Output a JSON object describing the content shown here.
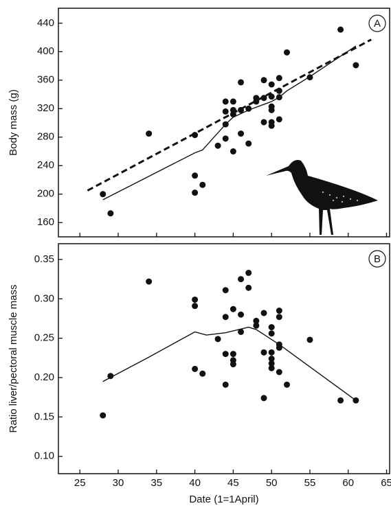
{
  "chart_data": [
    {
      "type": "scatter",
      "ylabel": "Body mass (g)",
      "annotation": "A",
      "color": "#111",
      "xlim": [
        22.2,
        65.4
      ],
      "ylim": [
        140,
        461
      ],
      "xticks": [
        25,
        30,
        35,
        40,
        45,
        50,
        55,
        60,
        65
      ],
      "xtick_labels": false,
      "yticks": [
        160,
        200,
        240,
        280,
        320,
        360,
        400,
        440
      ],
      "points": {
        "x": [
          28,
          29,
          34,
          40,
          40,
          40,
          41,
          43,
          44,
          44,
          44,
          44,
          45,
          45,
          45,
          45,
          46,
          46,
          46,
          47,
          47,
          48,
          48,
          49,
          49,
          49,
          50,
          50,
          50,
          50,
          50,
          50,
          51,
          51,
          51,
          51,
          52,
          55,
          59,
          61
        ],
        "y": [
          200,
          173,
          285,
          283,
          226,
          202,
          213,
          268,
          330,
          316,
          298,
          278,
          330,
          318,
          312,
          260,
          357,
          318,
          285,
          271,
          320,
          335,
          330,
          360,
          335,
          301,
          354,
          337,
          323,
          318,
          301,
          296,
          363,
          345,
          336,
          305,
          399,
          364,
          431,
          381
        ]
      },
      "lines": [
        {
          "style": "solid",
          "x": [
            28,
            40,
            41,
            44,
            45,
            47,
            49,
            50,
            51,
            52,
            55,
            61
          ],
          "y": [
            192,
            258,
            262,
            298,
            308,
            318,
            326,
            330,
            336,
            345,
            365,
            408
          ]
        },
        {
          "style": "dashed",
          "x": [
            26,
            63
          ],
          "y": [
            205,
            417
          ]
        }
      ]
    },
    {
      "type": "scatter",
      "ylabel": "Ratio liver/pectoral muscle mass",
      "annotation": "B",
      "xlabel": "Date (1=1April)",
      "color": "#111",
      "xlim": [
        22.2,
        65.4
      ],
      "ylim": [
        0.078,
        0.37
      ],
      "xticks": [
        25,
        30,
        35,
        40,
        45,
        50,
        55,
        60,
        65
      ],
      "xtick_labels": true,
      "yticks": [
        {
          "value": 0.1,
          "label": "0.10"
        },
        0.15,
        {
          "value": 0.2,
          "label": "0.20"
        },
        0.25,
        {
          "value": 0.3,
          "label": "0.30"
        },
        0.35
      ],
      "points": {
        "x": [
          28,
          29,
          34,
          40,
          40,
          40,
          41,
          43,
          44,
          44,
          44,
          44,
          45,
          45,
          45,
          45,
          46,
          46,
          46,
          47,
          47,
          48,
          48,
          49,
          49,
          49,
          50,
          50,
          50,
          50,
          50,
          50,
          51,
          51,
          51,
          51,
          51,
          52,
          55,
          59,
          61
        ],
        "y": [
          0.152,
          0.202,
          0.322,
          0.299,
          0.291,
          0.211,
          0.205,
          0.249,
          0.311,
          0.277,
          0.23,
          0.191,
          0.287,
          0.23,
          0.222,
          0.217,
          0.325,
          0.28,
          0.258,
          0.333,
          0.314,
          0.272,
          0.266,
          0.282,
          0.232,
          0.174,
          0.264,
          0.256,
          0.232,
          0.224,
          0.218,
          0.212,
          0.285,
          0.277,
          0.242,
          0.238,
          0.207,
          0.191,
          0.248,
          0.171,
          0.171
        ]
      },
      "lines": [
        {
          "style": "solid",
          "x": [
            28,
            34,
            40,
            41.5,
            44,
            47,
            48,
            51,
            61
          ],
          "y": [
            0.195,
            0.226,
            0.258,
            0.254,
            0.257,
            0.264,
            0.261,
            0.242,
            0.171
          ]
        }
      ]
    }
  ]
}
